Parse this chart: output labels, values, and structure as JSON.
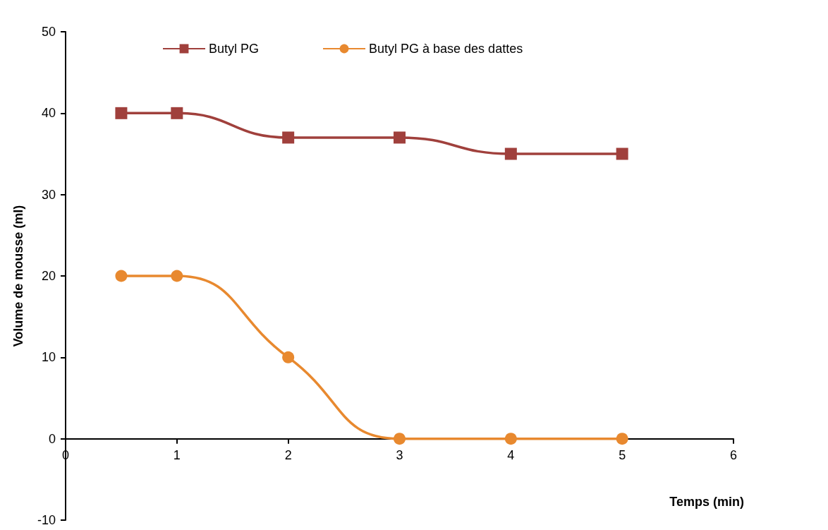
{
  "chart_data": {
    "type": "line",
    "xlabel": "Temps (min)",
    "ylabel": "Volume de mousse (ml)",
    "x": [
      0.5,
      1,
      2,
      3,
      4,
      5
    ],
    "series": [
      {
        "name": "Butyl PG",
        "color": "#a0403c",
        "marker": "square",
        "values": [
          40,
          40,
          37,
          37,
          35,
          35
        ]
      },
      {
        "name": "Butyl PG à base des dattes",
        "color": "#e8892f",
        "marker": "circle",
        "values": [
          20,
          20,
          10,
          0,
          0,
          0
        ]
      }
    ],
    "xlim": [
      0,
      6
    ],
    "xticks": [
      0,
      1,
      2,
      3,
      4,
      5,
      6
    ],
    "ylim": [
      -10,
      50
    ],
    "yticks": [
      -10,
      0,
      10,
      20,
      30,
      40,
      50
    ],
    "legend": "top",
    "line_style": "solid"
  }
}
